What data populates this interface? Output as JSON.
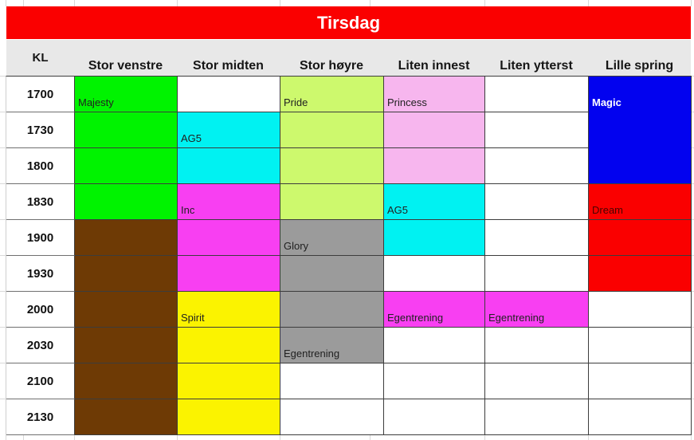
{
  "banner": {
    "title": "Tirsdag"
  },
  "header": {
    "kl": "KL",
    "columns": [
      "Stor venstre",
      "Stor midten",
      "Stor høyre",
      "Liten innest",
      "Liten ytterst",
      "Lille spring"
    ],
    "column_keys": [
      "stor-venstre",
      "stor-midten",
      "stor-hoyre",
      "liten-innest",
      "liten-ytterst",
      "lille-spring"
    ]
  },
  "palette": {
    "red": "#FA0000",
    "green": "#00F300",
    "cyan": "#00F2F2",
    "light_green": "#CDF96D",
    "pink": "#F7B6EE",
    "blue": "#0202EF",
    "magenta": "#F83FF2",
    "brown": "#6E3A05",
    "gray": "#9B9B9B",
    "yellow": "#FBF300",
    "header_gray": "#E8E8E8",
    "white": "#FFFFFF"
  },
  "rows": [
    {
      "time": "1700",
      "cells": [
        {
          "bg": "green",
          "label": "Majesty"
        },
        {
          "bg": "white"
        },
        {
          "bg": "light_green",
          "label": "Pride"
        },
        {
          "bg": "pink",
          "label": "Princess"
        },
        {
          "bg": "white"
        },
        {
          "bg": "blue",
          "label": "Magic",
          "label_class": "light",
          "no_bottom": true
        }
      ]
    },
    {
      "time": "1730",
      "cells": [
        {
          "bg": "green"
        },
        {
          "bg": "cyan",
          "label": "AG5"
        },
        {
          "bg": "light_green"
        },
        {
          "bg": "pink"
        },
        {
          "bg": "white"
        },
        {
          "bg": "blue",
          "no_bottom": true
        }
      ]
    },
    {
      "time": "1800",
      "cells": [
        {
          "bg": "green"
        },
        {
          "bg": "cyan"
        },
        {
          "bg": "light_green"
        },
        {
          "bg": "pink"
        },
        {
          "bg": "white"
        },
        {
          "bg": "blue"
        }
      ]
    },
    {
      "time": "1830",
      "cells": [
        {
          "bg": "green"
        },
        {
          "bg": "magenta",
          "label": "Inc"
        },
        {
          "bg": "light_green"
        },
        {
          "bg": "cyan",
          "label": "AG5"
        },
        {
          "bg": "white"
        },
        {
          "bg": "red",
          "label": "Dream",
          "label_class": "dark-red"
        }
      ]
    },
    {
      "time": "1900",
      "cells": [
        {
          "bg": "brown"
        },
        {
          "bg": "magenta"
        },
        {
          "bg": "gray",
          "label": "Glory"
        },
        {
          "bg": "cyan"
        },
        {
          "bg": "white"
        },
        {
          "bg": "red"
        }
      ]
    },
    {
      "time": "1930",
      "cells": [
        {
          "bg": "brown"
        },
        {
          "bg": "magenta"
        },
        {
          "bg": "gray"
        },
        {
          "bg": "white"
        },
        {
          "bg": "white"
        },
        {
          "bg": "red"
        }
      ]
    },
    {
      "time": "2000",
      "cells": [
        {
          "bg": "brown"
        },
        {
          "bg": "yellow",
          "label": "Spirit"
        },
        {
          "bg": "gray"
        },
        {
          "bg": "magenta",
          "label": "Egentrening"
        },
        {
          "bg": "magenta",
          "label": "Egentrening"
        },
        {
          "bg": "white"
        }
      ]
    },
    {
      "time": "2030",
      "cells": [
        {
          "bg": "brown"
        },
        {
          "bg": "yellow"
        },
        {
          "bg": "gray",
          "label": "Egentrening"
        },
        {
          "bg": "white"
        },
        {
          "bg": "white"
        },
        {
          "bg": "white"
        }
      ]
    },
    {
      "time": "2100",
      "cells": [
        {
          "bg": "brown"
        },
        {
          "bg": "yellow"
        },
        {
          "bg": "white"
        },
        {
          "bg": "white"
        },
        {
          "bg": "white"
        },
        {
          "bg": "white"
        }
      ]
    },
    {
      "time": "2130",
      "cells": [
        {
          "bg": "brown"
        },
        {
          "bg": "yellow"
        },
        {
          "bg": "white"
        },
        {
          "bg": "white"
        },
        {
          "bg": "white"
        },
        {
          "bg": "white"
        }
      ]
    }
  ]
}
